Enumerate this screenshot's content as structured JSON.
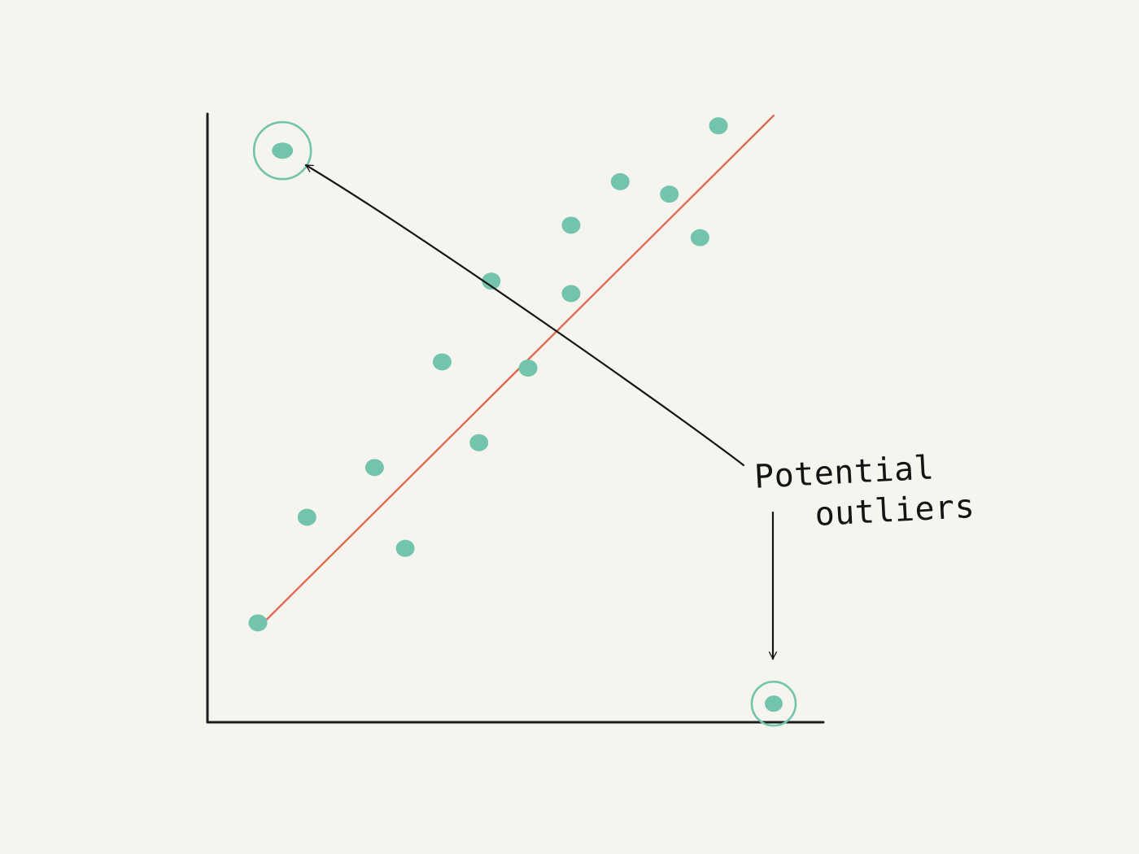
{
  "chart_data": {
    "type": "scatter",
    "title": "",
    "xlabel": "",
    "ylabel": "",
    "xlim": [
      0,
      100
    ],
    "ylim": [
      0,
      100
    ],
    "grid": false,
    "legend": "none",
    "colors": {
      "points": "#72c5ac",
      "trend_line": "#e06a52",
      "outlier_ring": "#72c5ac",
      "arrows": "#141414",
      "axes": "#1c1c1c",
      "background": "#f5f4ef"
    },
    "points": [
      {
        "x": 8,
        "y": 19,
        "outlier": false
      },
      {
        "x": 16,
        "y": 36,
        "outlier": false
      },
      {
        "x": 27,
        "y": 44,
        "outlier": false
      },
      {
        "x": 32,
        "y": 31,
        "outlier": false
      },
      {
        "x": 38,
        "y": 61,
        "outlier": false
      },
      {
        "x": 44,
        "y": 48,
        "outlier": false
      },
      {
        "x": 46,
        "y": 74,
        "outlier": false
      },
      {
        "x": 52,
        "y": 60,
        "outlier": false
      },
      {
        "x": 59,
        "y": 72,
        "outlier": false
      },
      {
        "x": 59,
        "y": 83,
        "outlier": false
      },
      {
        "x": 67,
        "y": 90,
        "outlier": false
      },
      {
        "x": 75,
        "y": 88,
        "outlier": false
      },
      {
        "x": 80,
        "y": 81,
        "outlier": false
      },
      {
        "x": 83,
        "y": 99,
        "outlier": false
      },
      {
        "x": 12,
        "y": 95,
        "outlier": true
      },
      {
        "x": 92,
        "y": 6,
        "outlier": true
      }
    ],
    "trend_line": {
      "x": [
        8,
        92
      ],
      "y": [
        18,
        100
      ]
    },
    "annotations": [
      {
        "text_lines": [
          "Potential",
          "outliers"
        ],
        "points_to": "outliers"
      }
    ]
  }
}
